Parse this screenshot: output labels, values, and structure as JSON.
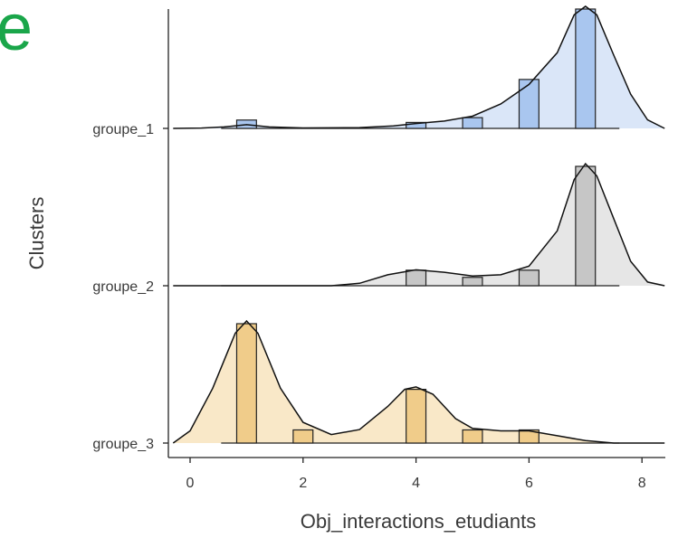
{
  "panel_label": "e",
  "chart_data": {
    "type": "ridgeline",
    "xlabel": "Obj_interactions_etudiants",
    "ylabel": "Clusters",
    "xlim": [
      -0.4,
      8.4
    ],
    "xticks": [
      "0",
      "2",
      "4",
      "6",
      "8"
    ],
    "xtick_values": [
      0,
      2,
      4,
      6,
      8
    ],
    "grid": false,
    "legend": "none",
    "series": [
      {
        "name": "groupe_1",
        "color": "#a9c6ef",
        "density_fill": "#dae6f8",
        "histogram": [
          {
            "x": 1,
            "height": 0.07
          },
          {
            "x": 4,
            "height": 0.05
          },
          {
            "x": 5,
            "height": 0.09
          },
          {
            "x": 6,
            "height": 0.41
          },
          {
            "x": 7,
            "height": 1.0
          }
        ],
        "density": [
          [
            -0.3,
            0.0
          ],
          [
            0.2,
            0.003
          ],
          [
            0.6,
            0.012
          ],
          [
            1.0,
            0.03
          ],
          [
            1.4,
            0.012
          ],
          [
            2.0,
            0.004
          ],
          [
            3.0,
            0.007
          ],
          [
            3.6,
            0.02
          ],
          [
            4.0,
            0.04
          ],
          [
            4.5,
            0.06
          ],
          [
            5.0,
            0.1
          ],
          [
            5.5,
            0.2
          ],
          [
            6.0,
            0.36
          ],
          [
            6.5,
            0.62
          ],
          [
            6.8,
            0.93
          ],
          [
            7.0,
            1.0
          ],
          [
            7.2,
            0.93
          ],
          [
            7.5,
            0.6
          ],
          [
            7.8,
            0.28
          ],
          [
            8.1,
            0.07
          ],
          [
            8.4,
            0.0
          ]
        ]
      },
      {
        "name": "groupe_2",
        "color": "#c6c6c6",
        "density_fill": "#e6e6e6",
        "histogram": [
          {
            "x": 4,
            "height": 0.13
          },
          {
            "x": 5,
            "height": 0.07
          },
          {
            "x": 6,
            "height": 0.13
          },
          {
            "x": 7,
            "height": 1.0
          }
        ],
        "density": [
          [
            -0.3,
            0.0
          ],
          [
            2.5,
            0.0
          ],
          [
            3.0,
            0.02
          ],
          [
            3.5,
            0.09
          ],
          [
            4.0,
            0.13
          ],
          [
            4.5,
            0.11
          ],
          [
            5.0,
            0.08
          ],
          [
            5.5,
            0.09
          ],
          [
            6.0,
            0.16
          ],
          [
            6.5,
            0.45
          ],
          [
            6.8,
            0.87
          ],
          [
            7.0,
            1.0
          ],
          [
            7.2,
            0.9
          ],
          [
            7.5,
            0.55
          ],
          [
            7.8,
            0.2
          ],
          [
            8.1,
            0.03
          ],
          [
            8.4,
            0.0
          ]
        ]
      },
      {
        "name": "groupe_3",
        "color": "#f0cc8a",
        "density_fill": "#f9e8c8",
        "histogram": [
          {
            "x": 1,
            "height": 1.0
          },
          {
            "x": 2,
            "height": 0.11
          },
          {
            "x": 4,
            "height": 0.45
          },
          {
            "x": 5,
            "height": 0.11
          },
          {
            "x": 6,
            "height": 0.11
          }
        ],
        "density": [
          [
            -0.3,
            0.0
          ],
          [
            0.0,
            0.1
          ],
          [
            0.4,
            0.45
          ],
          [
            0.8,
            0.9
          ],
          [
            1.0,
            1.0
          ],
          [
            1.2,
            0.9
          ],
          [
            1.6,
            0.45
          ],
          [
            2.0,
            0.17
          ],
          [
            2.5,
            0.07
          ],
          [
            3.0,
            0.11
          ],
          [
            3.5,
            0.3
          ],
          [
            3.8,
            0.44
          ],
          [
            4.0,
            0.46
          ],
          [
            4.3,
            0.4
          ],
          [
            4.7,
            0.2
          ],
          [
            5.0,
            0.12
          ],
          [
            5.5,
            0.1
          ],
          [
            6.0,
            0.1
          ],
          [
            6.5,
            0.06
          ],
          [
            7.0,
            0.02
          ],
          [
            7.5,
            0.0
          ],
          [
            8.4,
            0.0
          ]
        ]
      }
    ]
  }
}
